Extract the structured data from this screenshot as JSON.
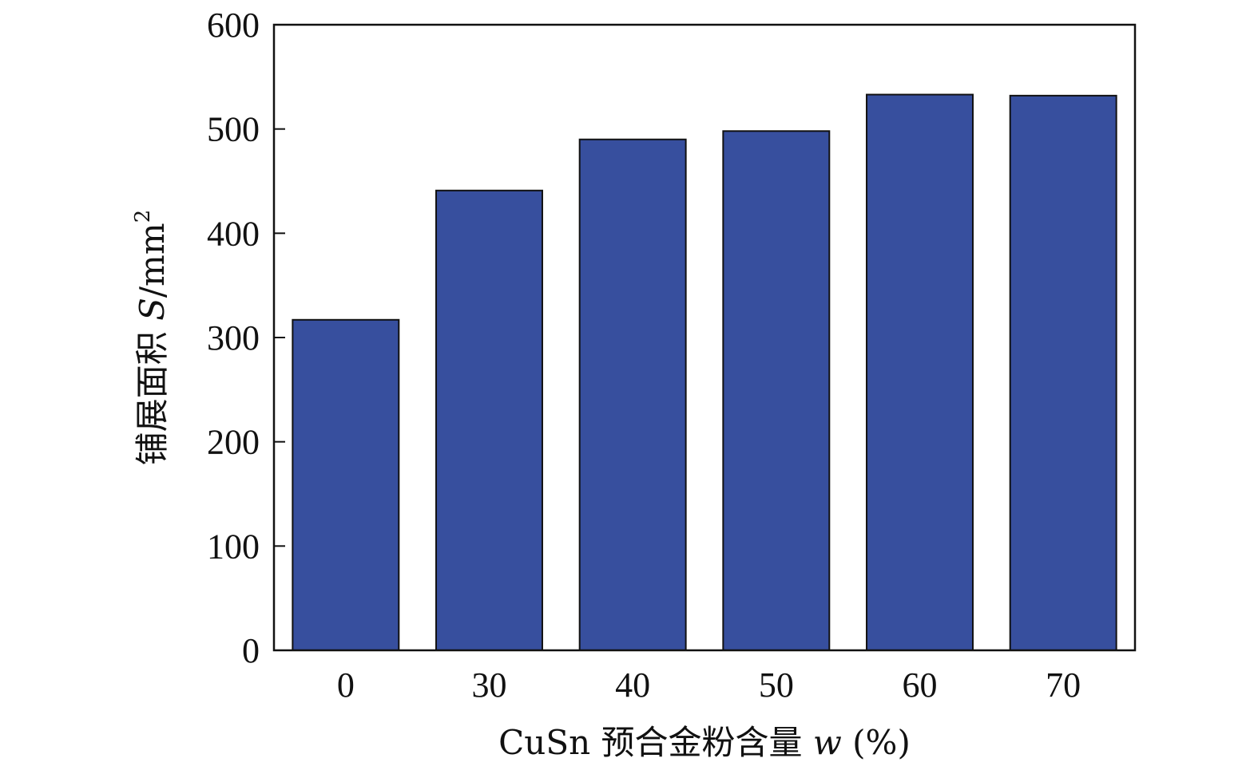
{
  "chart_data": {
    "type": "bar",
    "categories": [
      "0",
      "30",
      "40",
      "50",
      "60",
      "70"
    ],
    "values": [
      317,
      441,
      490,
      498,
      533,
      532
    ],
    "ylim": [
      0,
      600
    ],
    "yticks": [
      "0",
      "100",
      "200",
      "300",
      "400",
      "500",
      "600"
    ],
    "xlabel": {
      "prefix": "CuSn 预合金粉含量 ",
      "var": "w",
      "suffix": " (%)"
    },
    "ylabel": {
      "prefix": "铺展面积 ",
      "var": "S",
      "unit": "/mm",
      "sup": "2"
    },
    "bar_color": "#374f9e",
    "grid": false,
    "legend": "none"
  }
}
